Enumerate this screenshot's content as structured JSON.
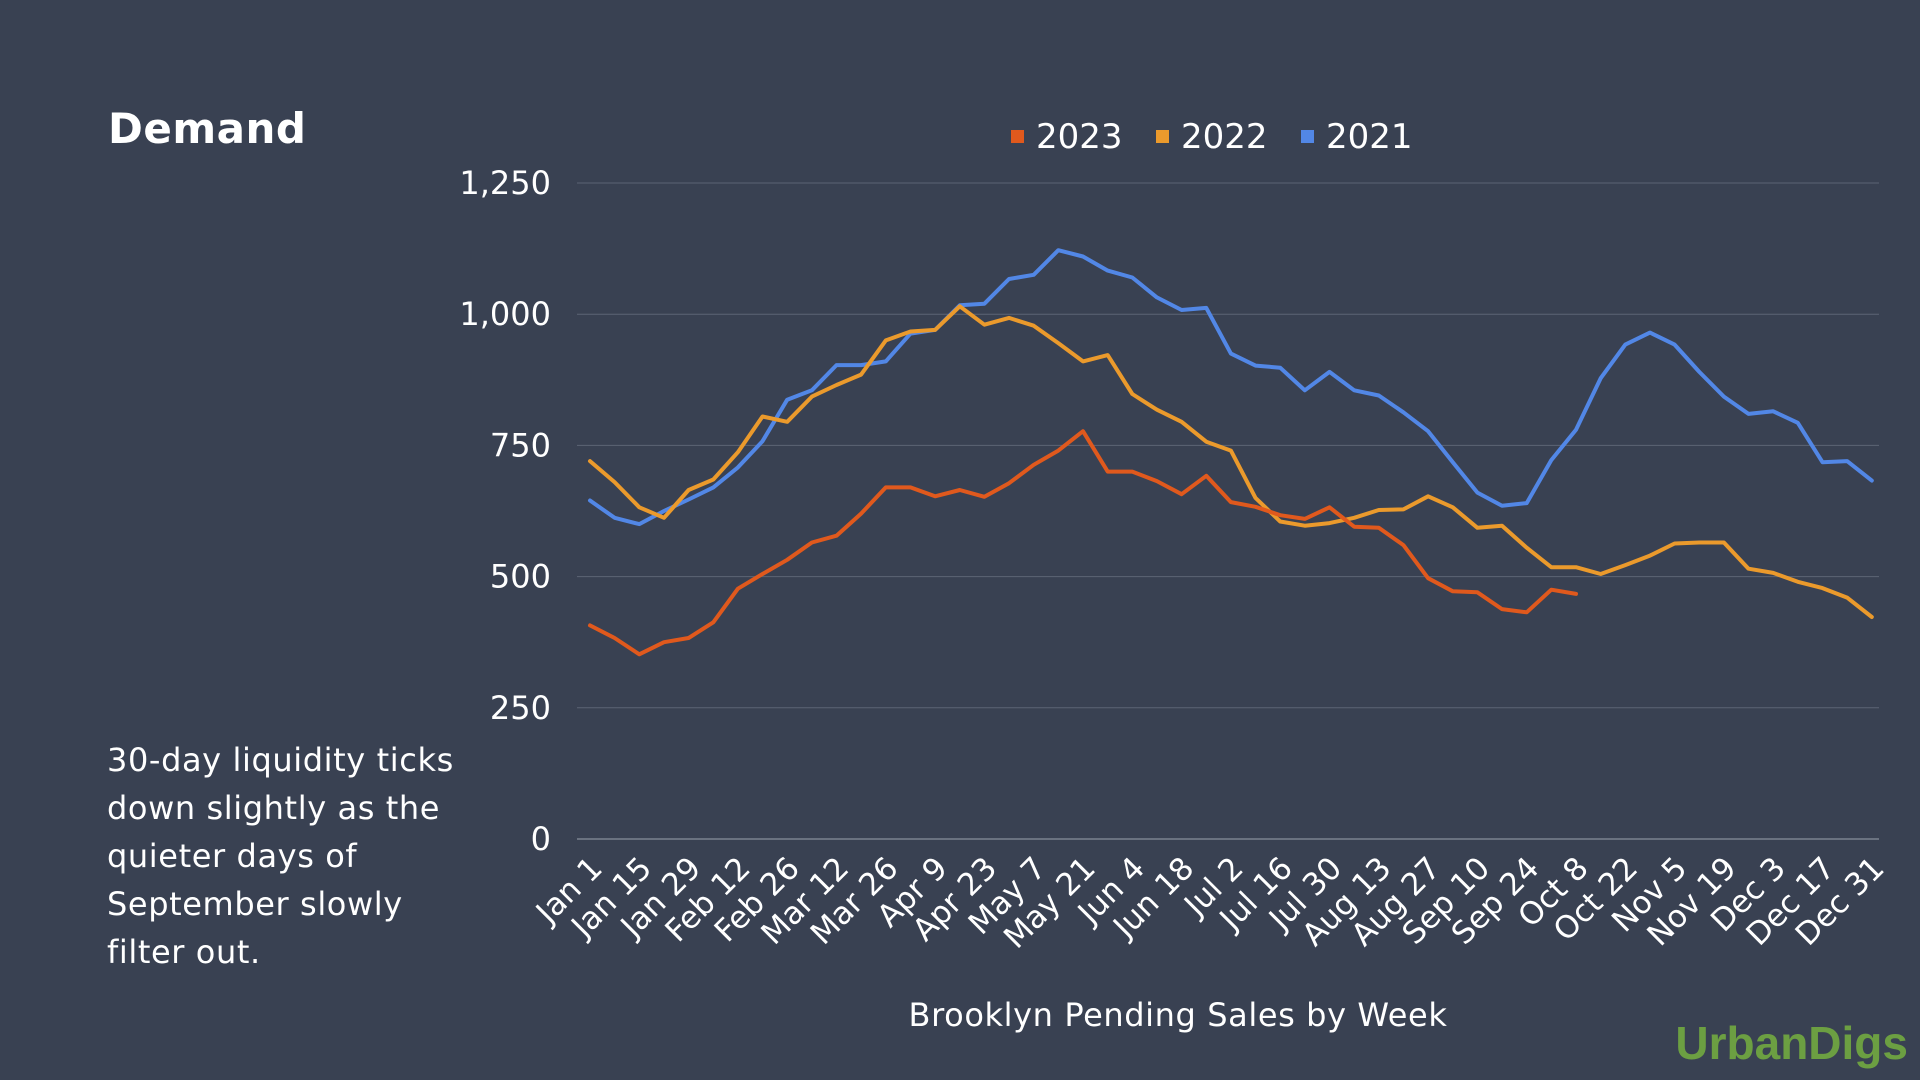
{
  "page": {
    "title": "Demand",
    "description": "30-day liquidity ticks down slightly as the quieter days of September slowly filter out.",
    "brand": "UrbanDigs"
  },
  "colors": {
    "background": "#394152",
    "grid": "#5c6474",
    "axis": "#7a8290",
    "series_2023": "#e0591d",
    "series_2022": "#eb9a2c",
    "series_2021": "#5287e6",
    "brand": "#6c9f42"
  },
  "chart_data": {
    "type": "line",
    "title": "",
    "xlabel": "Brooklyn Pending Sales by Week",
    "ylabel": "",
    "ylim": [
      0,
      1250
    ],
    "yticks": [
      0,
      250,
      500,
      750,
      1000,
      1250
    ],
    "ytick_labels": [
      "0",
      "250",
      "500",
      "750",
      "1,000",
      "1,250"
    ],
    "grid": true,
    "legend_position": "top-center",
    "x_count": 53,
    "xtick_labels": [
      "Jan 1",
      "Jan 15",
      "Jan 29",
      "Feb 12",
      "Feb 26",
      "Mar 12",
      "Mar 26",
      "Apr 9",
      "Apr 23",
      "May 7",
      "May 21",
      "Jun 4",
      "Jun 18",
      "Jul 2",
      "Jul 16",
      "Jul 30",
      "Aug 13",
      "Aug 27",
      "Sep 10",
      "Sep 24",
      "Oct 8",
      "Oct 22",
      "Nov 5",
      "Nov 19",
      "Dec 3",
      "Dec 17",
      "Dec 31"
    ],
    "series": [
      {
        "name": "2023",
        "color": "#e0591d",
        "values": [
          407,
          383,
          352,
          375,
          383,
          413,
          477,
          505,
          532,
          565,
          578,
          620,
          670,
          670,
          653,
          665,
          652,
          678,
          713,
          740,
          777,
          700,
          700,
          682,
          657,
          692,
          642,
          633,
          617,
          610,
          632,
          595,
          593,
          560,
          497,
          472,
          470,
          438,
          432,
          475,
          467
        ]
      },
      {
        "name": "2022",
        "color": "#eb9a2c",
        "values": [
          720,
          680,
          632,
          612,
          665,
          685,
          737,
          805,
          795,
          843,
          865,
          885,
          950,
          967,
          970,
          1015,
          980,
          993,
          978,
          945,
          910,
          922,
          848,
          818,
          795,
          757,
          740,
          650,
          605,
          597,
          602,
          612,
          627,
          628,
          653,
          632,
          593,
          597,
          555,
          518,
          518,
          505,
          522,
          540,
          563,
          565,
          565,
          515,
          507,
          490,
          478,
          460,
          423
        ]
      },
      {
        "name": "2021",
        "color": "#5287e6",
        "values": [
          645,
          612,
          600,
          625,
          647,
          670,
          708,
          758,
          837,
          855,
          903,
          903,
          910,
          963,
          970,
          1017,
          1020,
          1067,
          1075,
          1122,
          1110,
          1083,
          1070,
          1032,
          1008,
          1012,
          925,
          902,
          898,
          855,
          890,
          855,
          845,
          813,
          777,
          718,
          660,
          635,
          640,
          722,
          780,
          878,
          942,
          965,
          942,
          890,
          843,
          810,
          815,
          793,
          718,
          720,
          683
        ]
      }
    ]
  }
}
